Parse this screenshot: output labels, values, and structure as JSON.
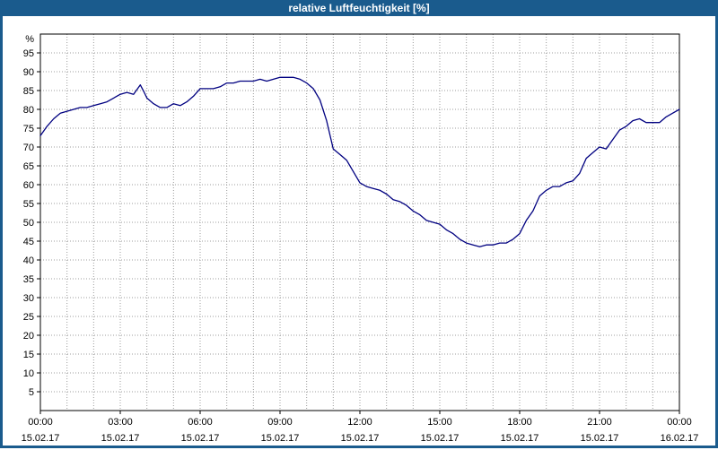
{
  "window": {
    "title": "relative Luftfeuchtigkeit [%]"
  },
  "colors": {
    "titlebar": "#1A5B8D",
    "frame": "#1A5B8D",
    "plot_bg": "#FFFFFF"
  },
  "chart_data": {
    "type": "line",
    "title": "relative Luftfeuchtigkeit [%]",
    "ylabel": "%",
    "xlabel": "",
    "ylim": [
      0,
      100
    ],
    "ytick_step": 5,
    "xlim": [
      0,
      24
    ],
    "x_major": 3,
    "x_minor": 1,
    "grid": true,
    "grid_color": "#9c9c9c",
    "line_color": "#000080",
    "legend": "none",
    "xticks": [
      {
        "time": "00:00",
        "date": "15.02.17"
      },
      {
        "time": "03:00",
        "date": "15.02.17"
      },
      {
        "time": "06:00",
        "date": "15.02.17"
      },
      {
        "time": "09:00",
        "date": "15.02.17"
      },
      {
        "time": "12:00",
        "date": "15.02.17"
      },
      {
        "time": "15:00",
        "date": "15.02.17"
      },
      {
        "time": "18:00",
        "date": "15.02.17"
      },
      {
        "time": "21:00",
        "date": "15.02.17"
      },
      {
        "time": "00:00",
        "date": "16.02.17"
      }
    ],
    "points": [
      [
        0,
        73
      ],
      [
        0.25,
        75.5
      ],
      [
        0.5,
        77.5
      ],
      [
        0.75,
        79
      ],
      [
        1,
        79.5
      ],
      [
        1.25,
        80
      ],
      [
        1.5,
        80.5
      ],
      [
        1.75,
        80.5
      ],
      [
        2,
        81
      ],
      [
        2.25,
        81.5
      ],
      [
        2.5,
        82
      ],
      [
        2.75,
        83
      ],
      [
        3,
        84
      ],
      [
        3.25,
        84.5
      ],
      [
        3.5,
        84
      ],
      [
        3.6,
        85
      ],
      [
        3.75,
        86.5
      ],
      [
        3.9,
        84.5
      ],
      [
        4,
        83
      ],
      [
        4.25,
        81.5
      ],
      [
        4.5,
        80.5
      ],
      [
        4.75,
        80.5
      ],
      [
        5,
        81.5
      ],
      [
        5.25,
        81
      ],
      [
        5.5,
        82
      ],
      [
        5.75,
        83.5
      ],
      [
        6,
        85.5
      ],
      [
        6.25,
        85.5
      ],
      [
        6.5,
        85.5
      ],
      [
        6.75,
        86
      ],
      [
        7,
        87
      ],
      [
        7.25,
        87
      ],
      [
        7.5,
        87.5
      ],
      [
        7.75,
        87.5
      ],
      [
        8,
        87.5
      ],
      [
        8.25,
        88
      ],
      [
        8.5,
        87.5
      ],
      [
        8.75,
        88
      ],
      [
        9,
        88.5
      ],
      [
        9.25,
        88.5
      ],
      [
        9.5,
        88.5
      ],
      [
        9.75,
        88
      ],
      [
        10,
        87
      ],
      [
        10.25,
        85.5
      ],
      [
        10.5,
        82.5
      ],
      [
        10.75,
        77
      ],
      [
        11,
        69.5
      ],
      [
        11.25,
        68
      ],
      [
        11.5,
        66.5
      ],
      [
        11.75,
        63.5
      ],
      [
        12,
        60.5
      ],
      [
        12.25,
        59.5
      ],
      [
        12.5,
        59
      ],
      [
        12.75,
        58.5
      ],
      [
        13,
        57.5
      ],
      [
        13.25,
        56
      ],
      [
        13.5,
        55.5
      ],
      [
        13.75,
        54.5
      ],
      [
        14,
        53
      ],
      [
        14.25,
        52
      ],
      [
        14.5,
        50.5
      ],
      [
        14.75,
        50
      ],
      [
        15,
        49.5
      ],
      [
        15.25,
        48
      ],
      [
        15.5,
        47
      ],
      [
        15.75,
        45.5
      ],
      [
        16,
        44.5
      ],
      [
        16.25,
        44
      ],
      [
        16.5,
        43.5
      ],
      [
        16.75,
        44
      ],
      [
        17,
        44
      ],
      [
        17.25,
        44.5
      ],
      [
        17.5,
        44.5
      ],
      [
        17.75,
        45.5
      ],
      [
        18,
        47
      ],
      [
        18.25,
        50.5
      ],
      [
        18.5,
        53
      ],
      [
        18.75,
        57
      ],
      [
        19,
        58.5
      ],
      [
        19.25,
        59.5
      ],
      [
        19.5,
        59.5
      ],
      [
        19.75,
        60.5
      ],
      [
        20,
        61
      ],
      [
        20.25,
        63
      ],
      [
        20.5,
        67
      ],
      [
        20.75,
        68.5
      ],
      [
        21,
        70
      ],
      [
        21.25,
        69.5
      ],
      [
        21.5,
        72
      ],
      [
        21.75,
        74.5
      ],
      [
        22,
        75.5
      ],
      [
        22.25,
        77
      ],
      [
        22.5,
        77.5
      ],
      [
        22.75,
        76.5
      ],
      [
        23,
        76.5
      ],
      [
        23.25,
        76.5
      ],
      [
        23.5,
        78
      ],
      [
        23.75,
        79
      ],
      [
        24,
        80
      ]
    ]
  }
}
